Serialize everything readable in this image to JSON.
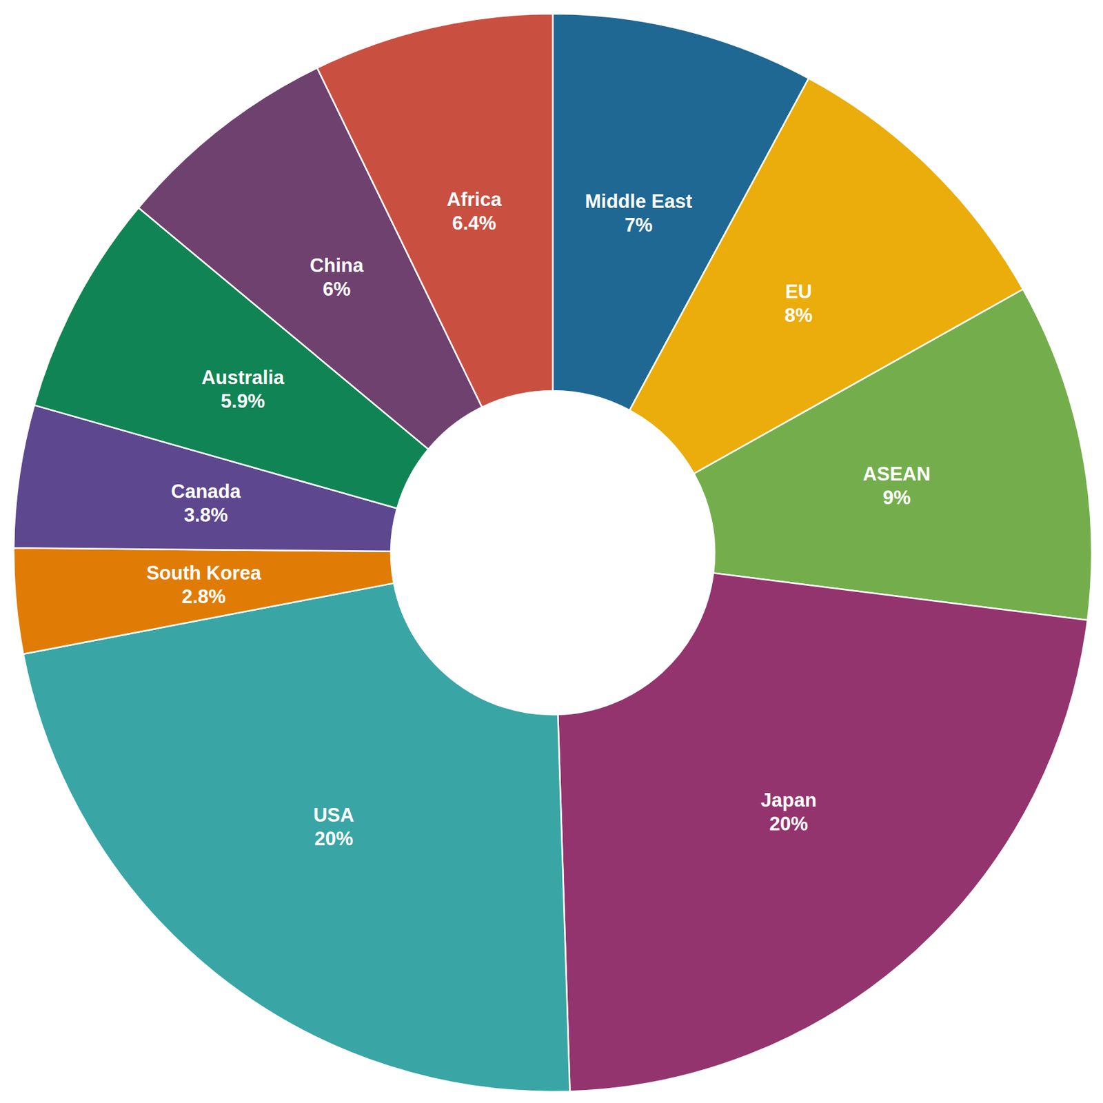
{
  "chart_data": {
    "type": "pie",
    "categories": [
      "Middle East",
      "EU",
      "ASEAN",
      "Japan",
      "USA",
      "South Korea",
      "Canada",
      "Australia",
      "China",
      "Africa"
    ],
    "values": [
      7,
      8,
      9,
      20,
      20,
      2.8,
      3.8,
      5.9,
      6,
      6.4
    ],
    "value_labels": [
      "7%",
      "8%",
      "9%",
      "20%",
      "20%",
      "2.8%",
      "3.8%",
      "5.9%",
      "6%",
      "6.4%"
    ],
    "colors": [
      "#1f6894",
      "#eaad0b",
      "#74ae4c",
      "#93346e",
      "#3aa5a5",
      "#e07c06",
      "#5d478e",
      "#108454",
      "#6f416f",
      "#c95041"
    ],
    "data_labels": true
  }
}
